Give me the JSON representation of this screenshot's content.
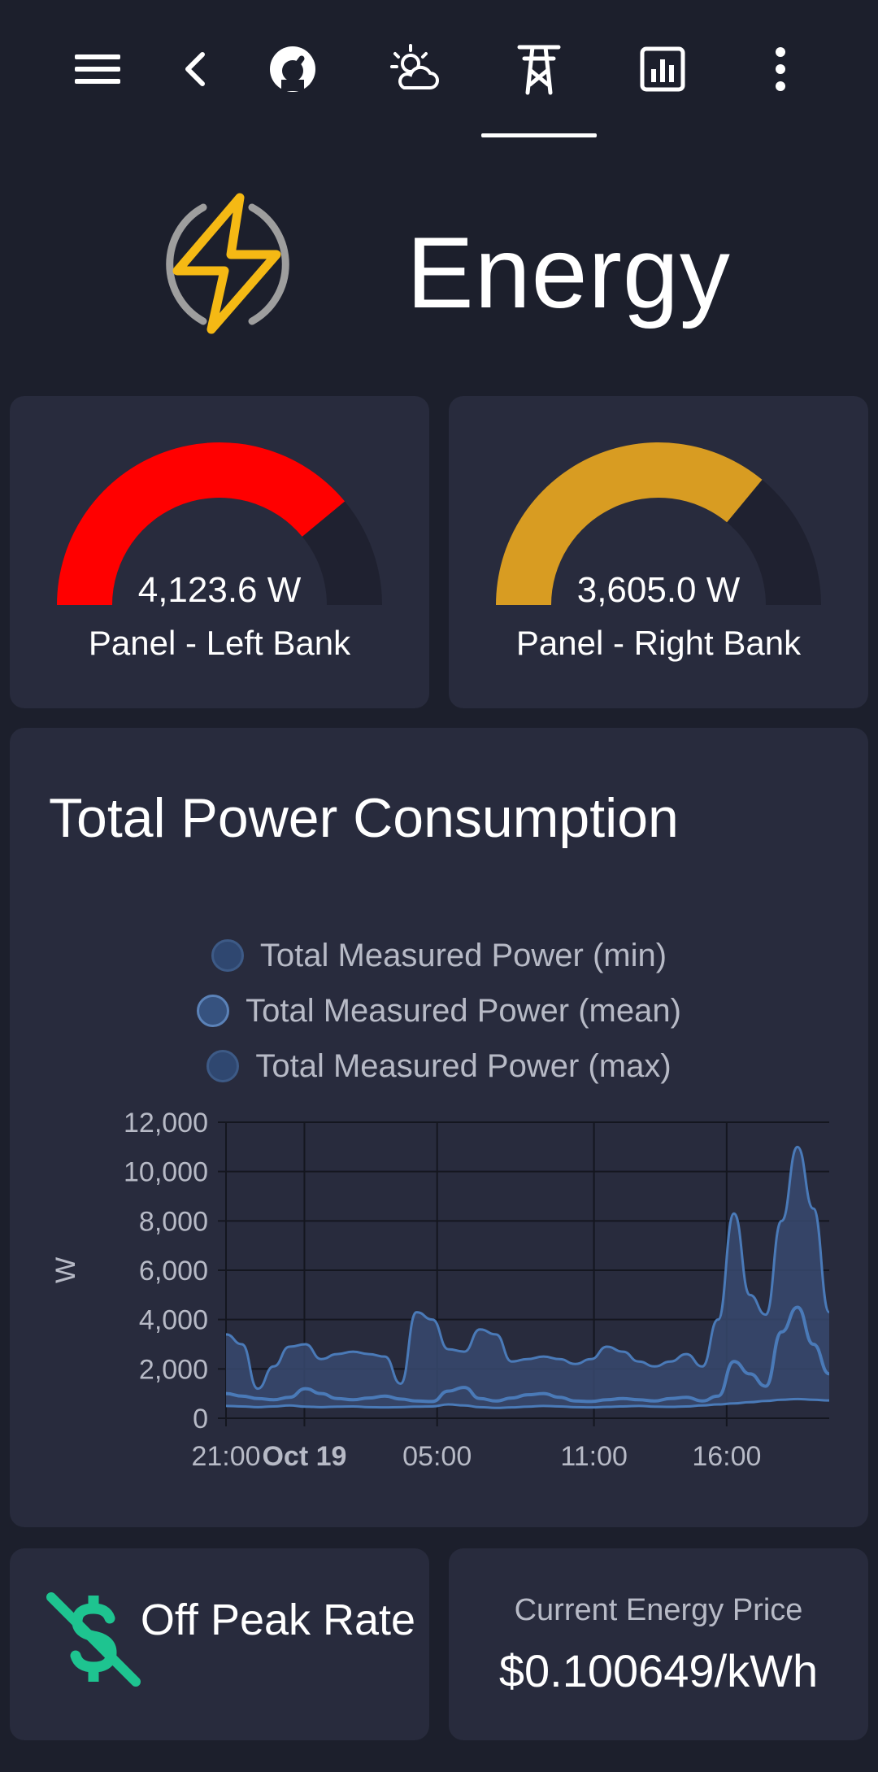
{
  "topbar": {
    "icons": [
      "menu-icon",
      "back-chevron-icon",
      "gauge-icon",
      "weather-icon",
      "power-tower-icon",
      "chart-icon",
      "more-vert-icon"
    ],
    "selected_tab": "power-tower-icon"
  },
  "header": {
    "title": "Energy",
    "icon": "lightning-bolt-icon"
  },
  "gauges": [
    {
      "value": "4,123.6 W",
      "name": "Panel - Left Bank",
      "fill_fraction": 0.78,
      "color": "#ff0000"
    },
    {
      "value": "3,605.0 W",
      "name": "Panel - Right Bank",
      "fill_fraction": 0.72,
      "color": "#d89c22"
    }
  ],
  "chart_title": "Total Power Consumption",
  "chart_data": {
    "type": "area",
    "title": "Total Power Consumption",
    "ylabel": "W",
    "ylim": [
      0,
      12000
    ],
    "yticks": [
      "12,000",
      "10,000",
      "8,000",
      "6,000",
      "4,000",
      "2,000",
      "0"
    ],
    "xticks": [
      "21:00",
      "Oct 19",
      "05:00",
      "11:00",
      "16:00"
    ],
    "legend": [
      "Total Measured Power (min)",
      "Total Measured Power (mean)",
      "Total Measured Power (max)"
    ],
    "series": [
      {
        "name": "Total Measured Power (min)",
        "values": [
          500,
          480,
          450,
          480,
          520,
          470,
          450,
          470,
          480,
          450,
          440,
          450,
          470,
          480,
          560,
          520,
          450,
          420,
          440,
          470,
          500,
          480,
          450,
          440,
          460,
          480,
          500,
          470,
          460,
          480,
          520,
          560,
          600,
          650,
          700,
          750,
          780,
          750,
          720
        ]
      },
      {
        "name": "Total Measured Power (mean)",
        "values": [
          1000,
          900,
          800,
          750,
          850,
          1200,
          1000,
          800,
          750,
          820,
          900,
          780,
          700,
          680,
          1100,
          1250,
          800,
          700,
          820,
          950,
          1000,
          850,
          700,
          680,
          750,
          800,
          750,
          700,
          800,
          850,
          700,
          900,
          2300,
          1800,
          1300,
          3500,
          4500,
          3000,
          1800
        ]
      },
      {
        "name": "Total Measured Power (max)",
        "values": [
          3400,
          3000,
          1200,
          2100,
          2900,
          3000,
          2400,
          2600,
          2700,
          2600,
          2500,
          1400,
          4300,
          4000,
          2800,
          2700,
          3600,
          3400,
          2300,
          2400,
          2500,
          2400,
          2200,
          2400,
          2900,
          2700,
          2300,
          2100,
          2300,
          2600,
          2100,
          4000,
          8300,
          5000,
          4200,
          8000,
          11000,
          8500,
          4300
        ]
      }
    ],
    "colors": {
      "line": "#4a7ab8",
      "fill": "#37496f"
    }
  },
  "offpeak": {
    "label": "Off Peak Rate",
    "icon": "no-money-icon",
    "color": "#1ec490"
  },
  "price": {
    "label": "Current Energy Price",
    "value": "$0.100649/kWh"
  }
}
